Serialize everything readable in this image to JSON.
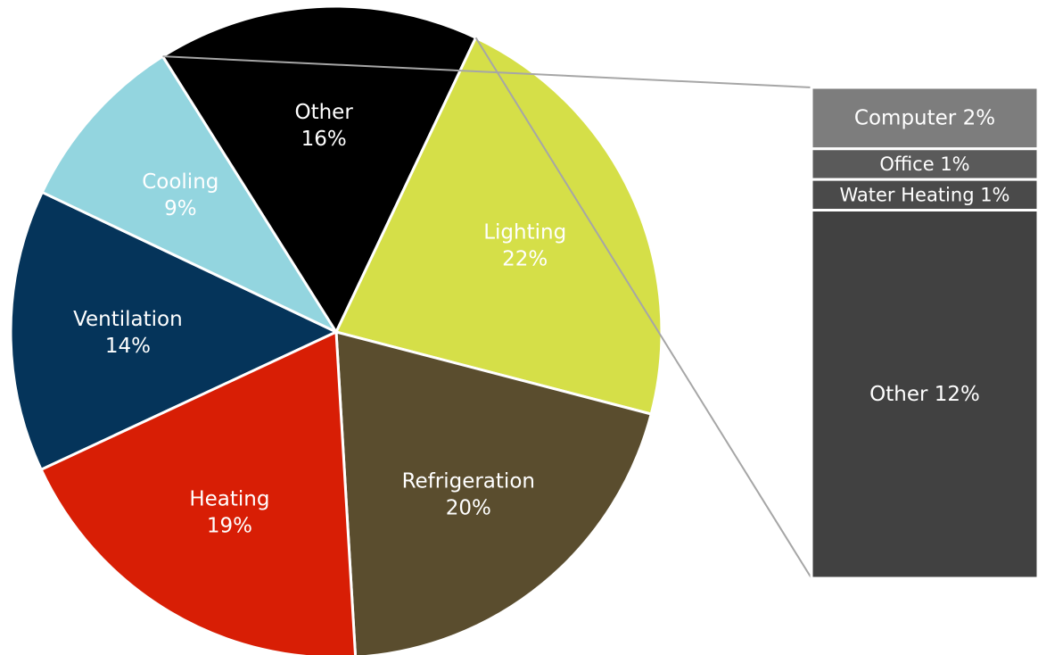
{
  "chart_data": {
    "type": "pie",
    "pie": {
      "slices": [
        {
          "label": "Ventilation",
          "value": 14,
          "value_label": "14%",
          "color": "#05345a",
          "text_color": "#ffffff"
        },
        {
          "label": "Cooling",
          "value": 9,
          "value_label": "9%",
          "color": "#93d5df",
          "text_color": "#ffffff"
        },
        {
          "label": "Other",
          "value": 16,
          "value_label": "16%",
          "color": "#000000",
          "text_color": "#ffffff"
        },
        {
          "label": "Lighting",
          "value": 22,
          "value_label": "22%",
          "color": "#d5df48",
          "text_color": "#ffffff"
        },
        {
          "label": "Refrigeration",
          "value": 20,
          "value_label": "20%",
          "color": "#5a4d2e",
          "text_color": "#ffffff"
        },
        {
          "label": "Heating",
          "value": 19,
          "value_label": "19%",
          "color": "#d81e05",
          "text_color": "#ffffff"
        }
      ],
      "exploded_slice": "Other"
    },
    "breakdown_bar": {
      "of": "Other",
      "segments": [
        {
          "label": "Computer 2%",
          "value": 2,
          "color": "#7d7d7d"
        },
        {
          "label": "Office 1%",
          "value": 1,
          "color": "#5a5a5a"
        },
        {
          "label": "Water Heating 1%",
          "value": 1,
          "color": "#4a4a4a"
        },
        {
          "label": "Other 12%",
          "value": 12,
          "color": "#414141"
        }
      ]
    },
    "connector_color": "#a6a6a6",
    "legend": "none"
  }
}
